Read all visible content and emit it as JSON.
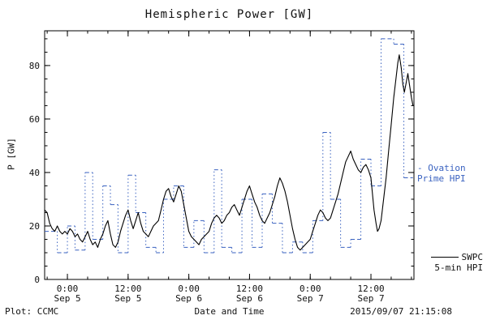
{
  "footer": {
    "left": "Plot: CCMC",
    "right": "2015/09/07 21:15:08"
  },
  "accent_colors": {
    "ovation_blue": "#3a62c0",
    "swpc_black": "#000000"
  },
  "chart_data": {
    "type": "line",
    "title": "Hemispheric Power [GW]",
    "xlabel": "Date and Time",
    "ylabel": "P [GW]",
    "x_unit": "hours from 2015-09-05 00:00 UT",
    "xlim": [
      -4.5,
      68.5
    ],
    "ylim": [
      0,
      93
    ],
    "grid": false,
    "legend_position": "right-outside",
    "xticks": [
      {
        "t": 0,
        "line1": "0:00",
        "line2": "Sep 5"
      },
      {
        "t": 12,
        "line1": "12:00",
        "line2": "Sep 5"
      },
      {
        "t": 24,
        "line1": "0:00",
        "line2": "Sep 6"
      },
      {
        "t": 36,
        "line1": "12:00",
        "line2": "Sep 6"
      },
      {
        "t": 48,
        "line1": "0:00",
        "line2": "Sep 7"
      },
      {
        "t": 60,
        "line1": "12:00",
        "line2": "Sep 7"
      }
    ],
    "yticks": [
      0,
      20,
      40,
      60,
      80
    ],
    "legend": [
      {
        "line1": "- Ovation",
        "line2": "Prime HPI",
        "color": "#3a62c0"
      },
      {
        "line1": "SWPC",
        "line2": "5-min HPI",
        "color": "#000000"
      }
    ],
    "series": [
      {
        "name": "Ovation Prime HPI",
        "type": "step",
        "color": "#3a62c0",
        "segments": [
          [
            -4.5,
            -2,
            18
          ],
          [
            -2,
            0,
            10
          ],
          [
            0,
            1.5,
            20
          ],
          [
            1.5,
            3.5,
            11
          ],
          [
            3.5,
            5,
            40
          ],
          [
            5,
            7,
            15
          ],
          [
            7,
            8.5,
            35
          ],
          [
            8.5,
            10,
            28
          ],
          [
            10,
            12,
            10
          ],
          [
            12,
            13.5,
            39
          ],
          [
            13.5,
            15.5,
            25
          ],
          [
            15.5,
            17.5,
            12
          ],
          [
            17.5,
            19,
            10
          ],
          [
            19,
            21,
            30
          ],
          [
            21,
            23,
            35
          ],
          [
            23,
            25,
            12
          ],
          [
            25,
            27,
            22
          ],
          [
            27,
            29,
            10
          ],
          [
            29,
            30.5,
            41
          ],
          [
            30.5,
            32.5,
            12
          ],
          [
            32.5,
            34.5,
            10
          ],
          [
            34.5,
            36.5,
            30
          ],
          [
            36.5,
            38.5,
            12
          ],
          [
            38.5,
            40.5,
            32
          ],
          [
            40.5,
            42.5,
            21
          ],
          [
            42.5,
            44.5,
            10
          ],
          [
            44.5,
            46.5,
            14
          ],
          [
            46.5,
            48.5,
            10
          ],
          [
            48.5,
            50.5,
            22
          ],
          [
            50.5,
            52,
            55
          ],
          [
            52,
            54,
            30
          ],
          [
            54,
            56,
            12
          ],
          [
            56,
            58,
            15
          ],
          [
            58,
            60,
            45
          ],
          [
            60,
            62,
            35
          ],
          [
            62,
            64.5,
            90
          ],
          [
            64.5,
            66.5,
            88
          ],
          [
            66.5,
            68.3,
            38
          ]
        ]
      },
      {
        "name": "SWPC 5-min HPI",
        "type": "line",
        "color": "#000000",
        "points": [
          [
            -4.5,
            26
          ],
          [
            -4,
            25
          ],
          [
            -3.5,
            21
          ],
          [
            -3,
            19
          ],
          [
            -2.5,
            18
          ],
          [
            -2,
            20
          ],
          [
            -1.5,
            18
          ],
          [
            -1,
            17
          ],
          [
            -0.5,
            18
          ],
          [
            0,
            17
          ],
          [
            0.5,
            19
          ],
          [
            1,
            18
          ],
          [
            1.5,
            16
          ],
          [
            2,
            17
          ],
          [
            2.5,
            15
          ],
          [
            3,
            14
          ],
          [
            3.5,
            16
          ],
          [
            4,
            18
          ],
          [
            4.5,
            15
          ],
          [
            5,
            13
          ],
          [
            5.5,
            14
          ],
          [
            6,
            12
          ],
          [
            6.5,
            15
          ],
          [
            7,
            17
          ],
          [
            7.5,
            20
          ],
          [
            8,
            22
          ],
          [
            8.5,
            17
          ],
          [
            9,
            13
          ],
          [
            9.5,
            12
          ],
          [
            10,
            14
          ],
          [
            10.5,
            18
          ],
          [
            11,
            21
          ],
          [
            11.5,
            24
          ],
          [
            12,
            26
          ],
          [
            12.5,
            22
          ],
          [
            13,
            19
          ],
          [
            13.5,
            22
          ],
          [
            14,
            25
          ],
          [
            14.5,
            21
          ],
          [
            15,
            18
          ],
          [
            15.5,
            17
          ],
          [
            16,
            16
          ],
          [
            16.5,
            18
          ],
          [
            17,
            20
          ],
          [
            17.5,
            21
          ],
          [
            18,
            22
          ],
          [
            18.5,
            26
          ],
          [
            19,
            30
          ],
          [
            19.5,
            33
          ],
          [
            20,
            34
          ],
          [
            20.5,
            31
          ],
          [
            21,
            29
          ],
          [
            21.5,
            32
          ],
          [
            22,
            35
          ],
          [
            22.5,
            33
          ],
          [
            23,
            28
          ],
          [
            23.5,
            23
          ],
          [
            24,
            18
          ],
          [
            24.5,
            16
          ],
          [
            25,
            15
          ],
          [
            25.5,
            14
          ],
          [
            26,
            13
          ],
          [
            26.5,
            15
          ],
          [
            27,
            16
          ],
          [
            27.5,
            17
          ],
          [
            28,
            18
          ],
          [
            28.5,
            21
          ],
          [
            29,
            23
          ],
          [
            29.5,
            24
          ],
          [
            30,
            23
          ],
          [
            30.5,
            21
          ],
          [
            31,
            22
          ],
          [
            31.5,
            24
          ],
          [
            32,
            25
          ],
          [
            32.5,
            27
          ],
          [
            33,
            28
          ],
          [
            33.5,
            26
          ],
          [
            34,
            24
          ],
          [
            34.5,
            27
          ],
          [
            35,
            30
          ],
          [
            35.5,
            33
          ],
          [
            36,
            35
          ],
          [
            36.5,
            32
          ],
          [
            37,
            29
          ],
          [
            37.5,
            27
          ],
          [
            38,
            24
          ],
          [
            38.5,
            22
          ],
          [
            39,
            21
          ],
          [
            39.5,
            23
          ],
          [
            40,
            25
          ],
          [
            40.5,
            28
          ],
          [
            41,
            31
          ],
          [
            41.5,
            35
          ],
          [
            42,
            38
          ],
          [
            42.5,
            36
          ],
          [
            43,
            33
          ],
          [
            43.5,
            29
          ],
          [
            44,
            24
          ],
          [
            44.5,
            19
          ],
          [
            45,
            15
          ],
          [
            45.5,
            12
          ],
          [
            46,
            11
          ],
          [
            46.5,
            12
          ],
          [
            47,
            13
          ],
          [
            47.5,
            14
          ],
          [
            48,
            15
          ],
          [
            48.5,
            18
          ],
          [
            49,
            21
          ],
          [
            49.5,
            24
          ],
          [
            50,
            26
          ],
          [
            50.5,
            25
          ],
          [
            51,
            23
          ],
          [
            51.5,
            22
          ],
          [
            52,
            23
          ],
          [
            52.5,
            26
          ],
          [
            53,
            29
          ],
          [
            53.5,
            32
          ],
          [
            54,
            36
          ],
          [
            54.5,
            40
          ],
          [
            55,
            44
          ],
          [
            55.5,
            46
          ],
          [
            56,
            48
          ],
          [
            56.5,
            45
          ],
          [
            57,
            43
          ],
          [
            57.5,
            41
          ],
          [
            58,
            40
          ],
          [
            58.5,
            42
          ],
          [
            59,
            43
          ],
          [
            59.5,
            41
          ],
          [
            60,
            38
          ],
          [
            60.3,
            32
          ],
          [
            60.6,
            26
          ],
          [
            61,
            21
          ],
          [
            61.3,
            18
          ],
          [
            61.6,
            19
          ],
          [
            62,
            22
          ],
          [
            62.5,
            30
          ],
          [
            63,
            38
          ],
          [
            63.5,
            48
          ],
          [
            64,
            58
          ],
          [
            64.5,
            68
          ],
          [
            65,
            76
          ],
          [
            65.3,
            81
          ],
          [
            65.6,
            84
          ],
          [
            66,
            79
          ],
          [
            66.3,
            73
          ],
          [
            66.6,
            70
          ],
          [
            67,
            74
          ],
          [
            67.3,
            77
          ],
          [
            67.6,
            73
          ],
          [
            68,
            68
          ],
          [
            68.3,
            65
          ]
        ]
      }
    ]
  }
}
